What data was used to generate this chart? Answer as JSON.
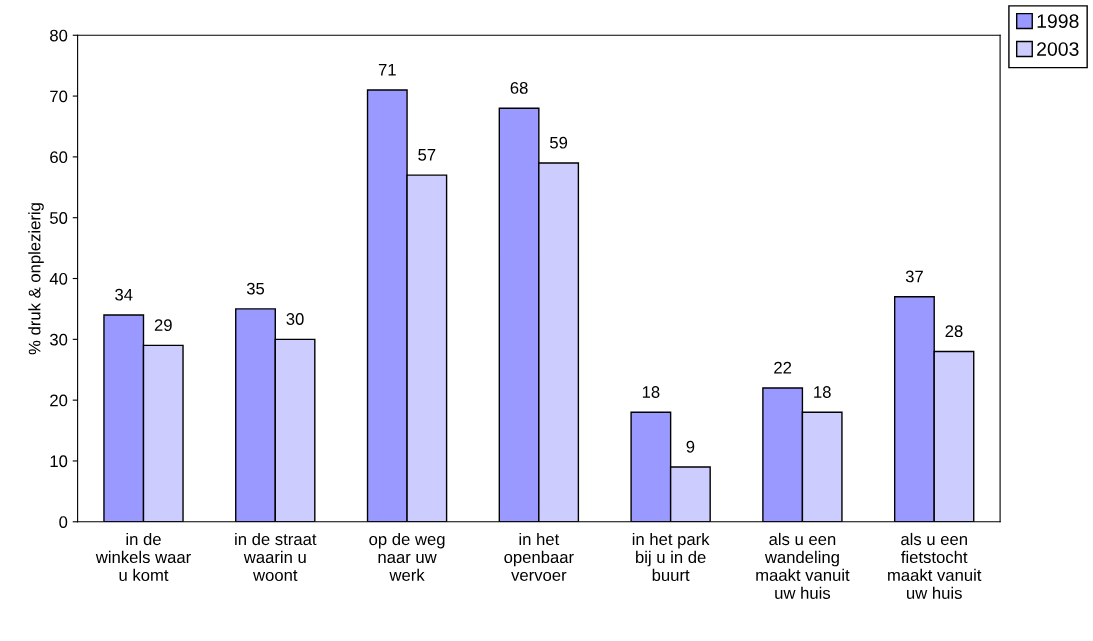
{
  "chart_data": {
    "type": "bar",
    "ylabel": "% druk & onplezierig",
    "categories": [
      "in de\nwinkels waar\nu komt",
      "in de straat\nwaarin u\nwoont",
      "op de weg\nnaar uw\nwerk",
      "in het\nopenbaar\nvervoer",
      "in het park\nbij u in de\nbuurt",
      "als u een\nwandeling\nmaakt vanuit\nuw huis",
      "als u een\nfietstocht\nmaakt vanuit\nuw huis"
    ],
    "series": [
      {
        "name": "1998",
        "color": "#9999ff",
        "values": [
          34,
          35,
          71,
          68,
          18,
          22,
          37
        ]
      },
      {
        "name": "2003",
        "color": "#ccccff",
        "values": [
          29,
          30,
          57,
          59,
          9,
          18,
          28
        ]
      }
    ],
    "ylim": [
      0,
      80
    ],
    "yticks": [
      0,
      10,
      20,
      30,
      40,
      50,
      60,
      70,
      80
    ],
    "data_labels": true,
    "grid": false,
    "legend": "top right"
  }
}
